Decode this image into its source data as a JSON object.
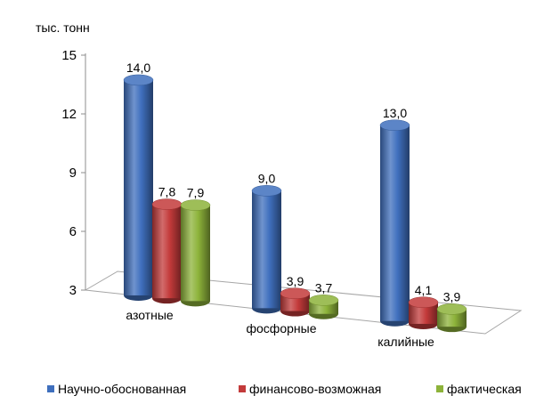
{
  "chart_data": {
    "type": "bar",
    "unit_label": "тыс. тонн",
    "categories": [
      "азотные",
      "фосфорные",
      "калийные"
    ],
    "series": [
      {
        "name": "Научно-обоснованная",
        "values": [
          14.0,
          9.0,
          13.0
        ],
        "labels": [
          "14,0",
          "9,0",
          "13,0"
        ],
        "color": "#3f6fbd"
      },
      {
        "name": "финансово-возможная",
        "values": [
          7.8,
          3.9,
          4.1
        ],
        "labels": [
          "7,8",
          "3,9",
          "4,1"
        ],
        "color": "#c33a3a"
      },
      {
        "name": "фактическая",
        "values": [
          7.9,
          3.7,
          3.9
        ],
        "labels": [
          "7,9",
          "3,7",
          "3,9"
        ],
        "color": "#8db33a"
      }
    ],
    "yticks": [
      3,
      6,
      9,
      12,
      15
    ],
    "ylim": [
      3,
      15
    ],
    "legend_position": "bottom",
    "style": "3d-cylinder"
  }
}
